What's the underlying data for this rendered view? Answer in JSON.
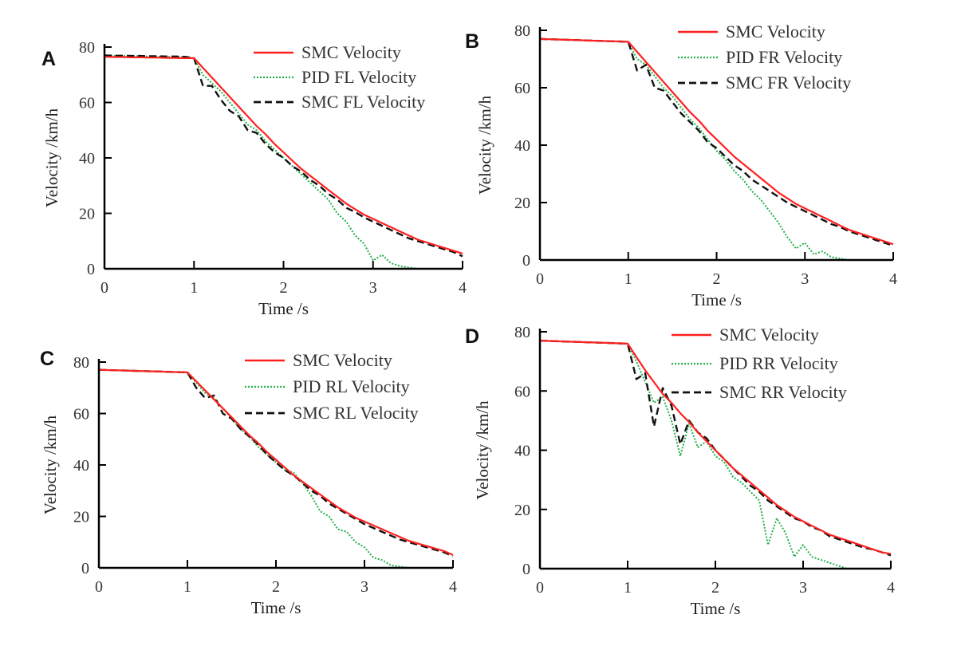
{
  "colors": {
    "smc_ref": "#ff2020",
    "pid": "#22b04a",
    "smc_wheel": "#111111"
  },
  "chart_data": [
    {
      "panel": "A",
      "type": "line",
      "xlabel": "Time /s",
      "ylabel": "Velocity /km/h",
      "xlim": [
        0,
        4
      ],
      "ylim": [
        0,
        80
      ],
      "xticks": [
        "0",
        "1",
        "2",
        "3",
        "4"
      ],
      "yticks": [
        "0",
        "20",
        "40",
        "60",
        "80"
      ],
      "legend": "top-right",
      "grid": false,
      "x": [
        0,
        0.1,
        0.2,
        0.3,
        0.4,
        0.5,
        0.6,
        0.7,
        0.8,
        0.9,
        1.0,
        1.1,
        1.2,
        1.3,
        1.4,
        1.5,
        1.6,
        1.7,
        1.8,
        1.9,
        2.0,
        2.1,
        2.2,
        2.3,
        2.4,
        2.5,
        2.6,
        2.7,
        2.8,
        2.9,
        3.0,
        3.1,
        3.2,
        3.3,
        3.4,
        3.5,
        3.6,
        3.7,
        3.8,
        3.9,
        4.0
      ],
      "series": [
        {
          "name": "SMC Velocity",
          "style": "solid",
          "values": [
            76.5,
            76.4,
            76.4,
            76.3,
            76.3,
            76.2,
            76.2,
            76.1,
            76.1,
            76,
            76,
            72.5,
            69,
            65.5,
            62,
            58.5,
            55,
            51.5,
            48.5,
            45,
            42,
            39,
            36,
            33.5,
            31,
            28.5,
            26,
            23.5,
            21.5,
            19.5,
            18,
            16.5,
            15,
            13.5,
            12,
            10.5,
            9.5,
            8.5,
            7.5,
            6.5,
            5.5
          ]
        },
        {
          "name": "PID FL Velocity",
          "style": "dotted",
          "values": [
            77,
            76.9,
            76.8,
            76.8,
            76.7,
            76.6,
            76.6,
            76.5,
            76.5,
            76.4,
            76,
            70,
            67,
            64,
            60,
            56,
            52,
            50,
            46,
            43,
            40,
            37,
            34,
            31,
            28,
            25,
            20,
            17,
            12,
            9,
            3,
            5,
            2,
            1,
            0.5,
            0,
            null,
            null,
            null,
            null,
            null
          ]
        },
        {
          "name": "SMC FL Velocity",
          "style": "dashed",
          "values": [
            77,
            76.9,
            76.9,
            76.8,
            76.8,
            76.7,
            76.7,
            76.6,
            76.6,
            76.5,
            76,
            66,
            66,
            61,
            57,
            55,
            50,
            49,
            45,
            42,
            40,
            37,
            35,
            32,
            30,
            27,
            25,
            22,
            20.5,
            18.5,
            17,
            15.5,
            14,
            12.5,
            11,
            10,
            9,
            8,
            7,
            6,
            4.5
          ]
        }
      ]
    },
    {
      "panel": "B",
      "type": "line",
      "xlabel": "Time /s",
      "ylabel": "Velocity /km/h",
      "xlim": [
        0,
        4
      ],
      "ylim": [
        0,
        80
      ],
      "xticks": [
        "0",
        "1",
        "2",
        "3",
        "4"
      ],
      "yticks": [
        "0",
        "20",
        "40",
        "60",
        "80"
      ],
      "legend": "top-right",
      "grid": false,
      "x": [
        0,
        0.1,
        0.2,
        0.3,
        0.4,
        0.5,
        0.6,
        0.7,
        0.8,
        0.9,
        1.0,
        1.1,
        1.2,
        1.3,
        1.4,
        1.5,
        1.6,
        1.7,
        1.8,
        1.9,
        2.0,
        2.1,
        2.2,
        2.3,
        2.4,
        2.5,
        2.6,
        2.7,
        2.8,
        2.9,
        3.0,
        3.1,
        3.2,
        3.3,
        3.4,
        3.5,
        3.6,
        3.7,
        3.8,
        3.9,
        4.0
      ],
      "series": [
        {
          "name": "SMC Velocity",
          "style": "solid",
          "values": [
            77,
            76.9,
            76.8,
            76.7,
            76.6,
            76.5,
            76.4,
            76.3,
            76.2,
            76.1,
            76,
            72.5,
            69,
            65.5,
            62,
            58.5,
            55,
            51.5,
            48.5,
            45,
            42,
            39,
            36,
            33.5,
            31,
            28.5,
            26,
            23.5,
            21.5,
            19.5,
            18,
            16.5,
            15,
            13.5,
            12,
            10.5,
            9.5,
            8.5,
            7.5,
            6.5,
            5.5
          ]
        },
        {
          "name": "PID FR Velocity",
          "style": "dotted",
          "values": [
            77,
            76.9,
            76.8,
            76.7,
            76.6,
            76.5,
            76.4,
            76.3,
            76.2,
            76.1,
            76,
            70,
            68,
            64,
            60,
            57,
            53,
            49,
            46,
            42,
            38,
            35,
            31,
            28,
            24,
            21,
            17,
            13,
            8,
            4,
            6,
            2,
            3,
            1,
            0.5,
            0,
            null,
            null,
            null,
            null,
            null
          ]
        },
        {
          "name": "SMC FR Velocity",
          "style": "dashed",
          "values": [
            77,
            76.9,
            76.8,
            76.7,
            76.6,
            76.5,
            76.4,
            76.3,
            76.2,
            76.1,
            76,
            66,
            68,
            60,
            59,
            55,
            51,
            48,
            45,
            41,
            39,
            36,
            33,
            31,
            28,
            26,
            24,
            22,
            20,
            18.5,
            17,
            15.5,
            14,
            12.5,
            11.5,
            10,
            9,
            8,
            7,
            6,
            5
          ]
        }
      ]
    },
    {
      "panel": "C",
      "type": "line",
      "xlabel": "Time /s",
      "ylabel": "Velocity /km/h",
      "xlim": [
        0,
        4
      ],
      "ylim": [
        0,
        80
      ],
      "xticks": [
        "0",
        "1",
        "2",
        "3",
        "4"
      ],
      "yticks": [
        "0",
        "20",
        "40",
        "60",
        "80"
      ],
      "legend": "top-right",
      "grid": false,
      "x": [
        0,
        0.1,
        0.2,
        0.3,
        0.4,
        0.5,
        0.6,
        0.7,
        0.8,
        0.9,
        1.0,
        1.1,
        1.2,
        1.3,
        1.4,
        1.5,
        1.6,
        1.7,
        1.8,
        1.9,
        2.0,
        2.1,
        2.2,
        2.3,
        2.4,
        2.5,
        2.6,
        2.7,
        2.8,
        2.9,
        3.0,
        3.1,
        3.2,
        3.3,
        3.4,
        3.5,
        3.6,
        3.7,
        3.8,
        3.9,
        4.0
      ],
      "series": [
        {
          "name": "SMC Velocity",
          "style": "solid",
          "values": [
            77,
            76.9,
            76.8,
            76.7,
            76.6,
            76.5,
            76.4,
            76.3,
            76.2,
            76.1,
            76,
            72.5,
            69,
            65.5,
            62,
            58.5,
            55,
            51.5,
            48.5,
            45,
            42,
            39,
            36,
            33.5,
            31,
            28.5,
            26,
            23.5,
            21.5,
            19.5,
            18,
            16.5,
            15,
            13.5,
            12,
            10.5,
            9.5,
            8.5,
            7.5,
            6.5,
            5
          ]
        },
        {
          "name": "PID RL Velocity",
          "style": "dotted",
          "values": [
            77,
            76.9,
            76.8,
            76.7,
            76.6,
            76.5,
            76.4,
            76.3,
            76.2,
            76.1,
            76,
            72,
            68,
            66,
            62,
            58,
            54,
            51,
            47,
            44,
            41,
            38,
            37,
            33,
            28,
            22,
            20,
            15,
            14,
            10,
            8,
            4,
            3,
            1,
            0.5,
            0,
            null,
            null,
            null,
            null,
            null
          ]
        },
        {
          "name": "SMC RL Velocity",
          "style": "dashed",
          "values": [
            77,
            76.9,
            76.8,
            76.7,
            76.6,
            76.5,
            76.4,
            76.3,
            76.2,
            76.1,
            76,
            70,
            66,
            67,
            60,
            58,
            54,
            51,
            48,
            44,
            41,
            38,
            36,
            33,
            30,
            28,
            25,
            23,
            21,
            19,
            17,
            15.5,
            14,
            12.5,
            11,
            10,
            9,
            8,
            7,
            6,
            4.5
          ]
        }
      ]
    },
    {
      "panel": "D",
      "type": "line",
      "xlabel": "Time /s",
      "ylabel": "Velocity /km/h",
      "xlim": [
        0,
        4
      ],
      "ylim": [
        0,
        80
      ],
      "xticks": [
        "0",
        "1",
        "2",
        "3",
        "4"
      ],
      "yticks": [
        "0",
        "20",
        "40",
        "60",
        "80"
      ],
      "legend": "top-right",
      "grid": false,
      "x": [
        0,
        0.1,
        0.2,
        0.3,
        0.4,
        0.5,
        0.6,
        0.7,
        0.8,
        0.9,
        1.0,
        1.1,
        1.2,
        1.3,
        1.4,
        1.5,
        1.6,
        1.7,
        1.8,
        1.9,
        2.0,
        2.1,
        2.2,
        2.3,
        2.4,
        2.5,
        2.6,
        2.7,
        2.8,
        2.9,
        3.0,
        3.1,
        3.2,
        3.3,
        3.4,
        3.5,
        3.6,
        3.7,
        3.8,
        3.9,
        4.0
      ],
      "series": [
        {
          "name": "SMC Velocity",
          "style": "solid",
          "values": [
            77,
            76.9,
            76.8,
            76.7,
            76.6,
            76.5,
            76.4,
            76.3,
            76.2,
            76.1,
            76,
            71.5,
            67,
            63,
            59,
            56,
            52.5,
            49.5,
            46,
            43,
            40,
            37,
            34,
            31.5,
            29,
            26.5,
            24,
            21.5,
            19.5,
            17.5,
            16,
            14.5,
            13,
            11.5,
            10.5,
            9.5,
            8.5,
            7.5,
            6.5,
            5.5,
            5
          ]
        },
        {
          "name": "PID RR Velocity",
          "style": "dotted",
          "values": [
            77,
            76.9,
            76.8,
            76.7,
            76.6,
            76.5,
            76.4,
            76.3,
            76.2,
            76.1,
            76,
            70,
            63,
            56,
            58,
            50,
            38,
            49,
            41,
            43,
            38,
            36,
            31,
            29,
            26,
            23,
            8,
            17,
            12,
            4,
            8,
            4,
            3,
            2,
            1,
            0,
            null,
            null,
            null,
            null,
            null
          ]
        },
        {
          "name": "SMC RR Velocity",
          "style": "dashed",
          "values": [
            77,
            76.9,
            76.8,
            76.7,
            76.6,
            76.5,
            76.4,
            76.3,
            76.2,
            76.1,
            76,
            64,
            66,
            48,
            61,
            55,
            42,
            50,
            46,
            44,
            40,
            37,
            34,
            31,
            28,
            26,
            23,
            21,
            19,
            17,
            16,
            14,
            13,
            11,
            10,
            9,
            8,
            7,
            6.5,
            5.5,
            4.5
          ]
        }
      ]
    }
  ]
}
